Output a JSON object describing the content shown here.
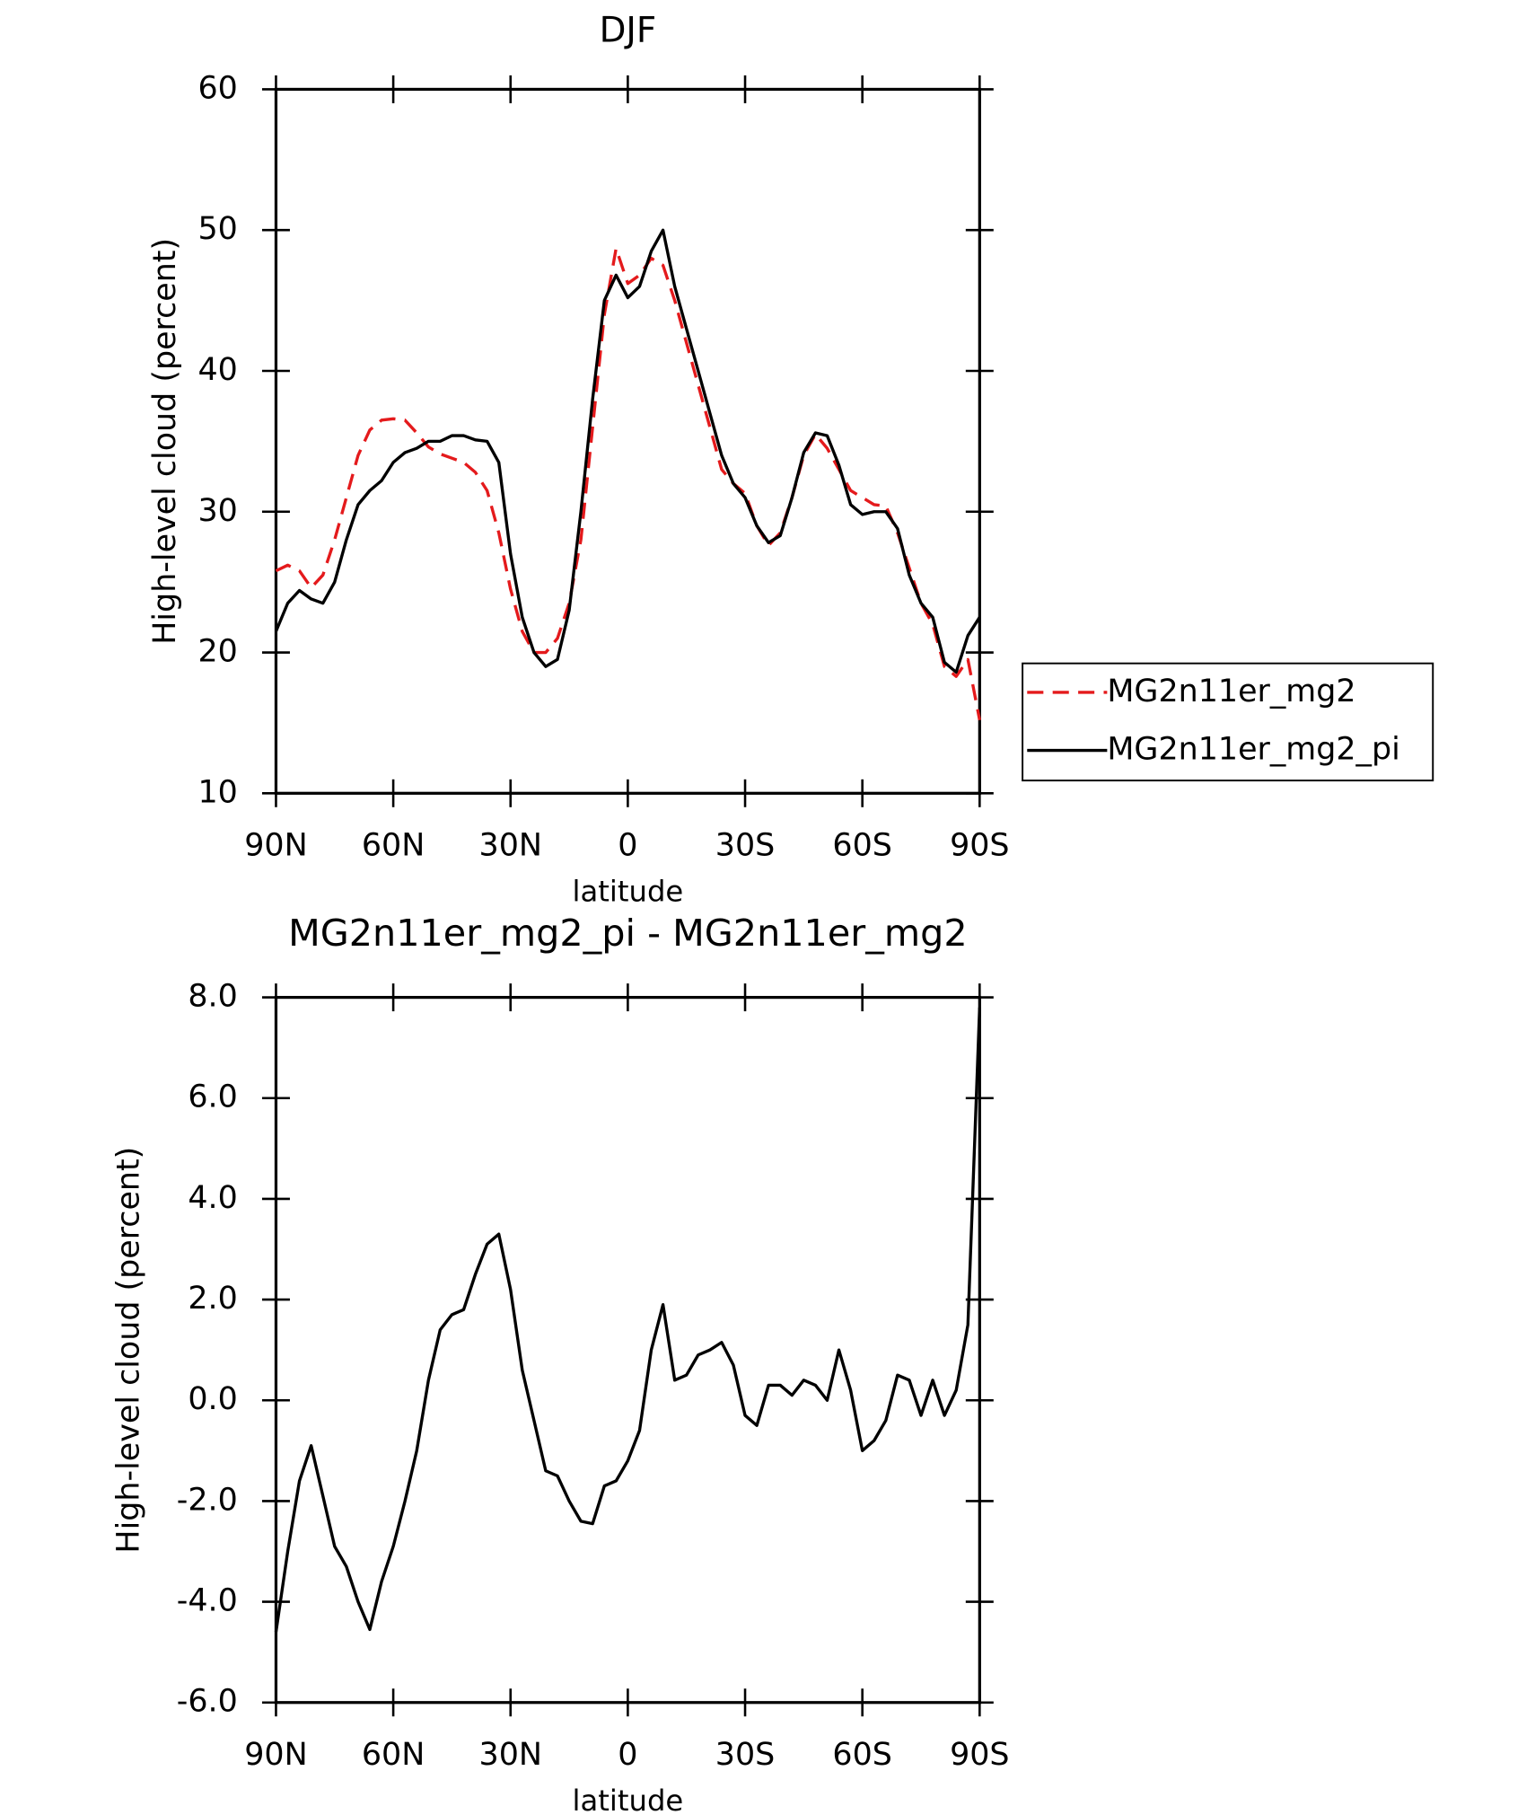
{
  "chart_data": [
    {
      "type": "line",
      "title": "DJF",
      "x_label": "latitude",
      "y_label": "High-level cloud (percent)",
      "x": [
        90,
        87,
        84,
        81,
        78,
        75,
        72,
        69,
        66,
        63,
        60,
        57,
        54,
        51,
        48,
        45,
        42,
        39,
        36,
        33,
        30,
        27,
        24,
        21,
        18,
        15,
        12,
        9,
        6,
        3,
        0,
        -3,
        -6,
        -9,
        -12,
        -15,
        -18,
        -21,
        -24,
        -27,
        -30,
        -33,
        -36,
        -39,
        -42,
        -45,
        -48,
        -51,
        -54,
        -57,
        -60,
        -63,
        -66,
        -69,
        -72,
        -75,
        -78,
        -81,
        -84,
        -87,
        -90
      ],
      "series": [
        {
          "name": "MG2n11er_mg2",
          "color": "#e41a1c",
          "dashed": true,
          "values": [
            25.8,
            26.2,
            25.8,
            24.6,
            25.5,
            28,
            31,
            34,
            35.8,
            36.5,
            36.6,
            36.5,
            35.6,
            34.6,
            34.1,
            33.8,
            33.5,
            32.8,
            31.5,
            28.5,
            24.5,
            21.5,
            20,
            20,
            21,
            23.5,
            28,
            36,
            44,
            48.7,
            46.2,
            46.8,
            48,
            47.5,
            45,
            42,
            39,
            36,
            33,
            32,
            31.3,
            29,
            27.6,
            28.5,
            31,
            34,
            35.5,
            34.5,
            33,
            31.5,
            31,
            30.5,
            30.4,
            28.5,
            26,
            23.5,
            22,
            19,
            18.3,
            19.5,
            15.2
          ]
        },
        {
          "name": "MG2n11er_mg2_pi",
          "color": "#000000",
          "dashed": false,
          "values": [
            21.5,
            23.5,
            24.4,
            23.8,
            23.5,
            25,
            28,
            30.5,
            31.5,
            32.2,
            33.5,
            34.2,
            34.5,
            35,
            35,
            35.4,
            35.4,
            35.1,
            35,
            33.5,
            27,
            22.5,
            20,
            19,
            19.5,
            23,
            30,
            38,
            45,
            46.8,
            45.2,
            46,
            48.5,
            50,
            46,
            43,
            40,
            37,
            34,
            32,
            31,
            29,
            27.8,
            28.3,
            31,
            34.2,
            35.6,
            35.4,
            33.3,
            30.5,
            29.8,
            30,
            30,
            28.8,
            25.5,
            23.5,
            22.5,
            19.3,
            18.6,
            21.2,
            22.5
          ]
        }
      ],
      "xlim": [
        90,
        -90
      ],
      "xticks": [
        {
          "value": 90,
          "label": "90N"
        },
        {
          "value": 60,
          "label": "60N"
        },
        {
          "value": 30,
          "label": "30N"
        },
        0,
        {
          "value": -30,
          "label": "30S"
        },
        {
          "value": -60,
          "label": "60S"
        },
        {
          "value": -90,
          "label": "90S"
        }
      ],
      "ylim": [
        10,
        60
      ],
      "yticks": [
        10,
        20,
        30,
        40,
        50,
        60
      ],
      "legend": "right"
    },
    {
      "type": "line",
      "title": "MG2n11er_mg2_pi - MG2n11er_mg2",
      "x_label": "latitude",
      "y_label": "High-level cloud (percent)",
      "x": [
        90,
        87,
        84,
        81,
        78,
        75,
        72,
        69,
        66,
        63,
        60,
        57,
        54,
        51,
        48,
        45,
        42,
        39,
        36,
        33,
        30,
        27,
        24,
        21,
        18,
        15,
        12,
        9,
        6,
        3,
        0,
        -3,
        -6,
        -9,
        -12,
        -15,
        -18,
        -21,
        -24,
        -27,
        -30,
        -33,
        -36,
        -39,
        -42,
        -45,
        -48,
        -51,
        -54,
        -57,
        -60,
        -63,
        -66,
        -69,
        -72,
        -75,
        -78,
        -81,
        -84,
        -87,
        -90
      ],
      "values": [
        -4.6,
        -3.0,
        -1.6,
        -0.9,
        -1.9,
        -2.9,
        -3.3,
        -4.0,
        -4.55,
        -3.6,
        -2.9,
        -2.0,
        -1.0,
        0.4,
        1.4,
        1.7,
        1.8,
        2.5,
        3.1,
        3.3,
        2.2,
        0.6,
        -0.4,
        -1.4,
        -1.5,
        -2.0,
        -2.4,
        -2.45,
        -1.7,
        -1.6,
        -1.2,
        -0.6,
        1.0,
        1.9,
        0.4,
        0.5,
        0.9,
        1.0,
        1.15,
        0.7,
        -0.3,
        -0.5,
        0.3,
        0.3,
        0.1,
        0.4,
        0.3,
        0.0,
        1.0,
        0.2,
        -1.0,
        -0.8,
        -0.4,
        0.5,
        0.4,
        -0.3,
        0.4,
        -0.3,
        0.2,
        1.5,
        7.8
      ],
      "color": "#000000",
      "xlim": [
        90,
        -90
      ],
      "xticks": [
        {
          "value": 90,
          "label": "90N"
        },
        {
          "value": 60,
          "label": "60N"
        },
        {
          "value": 30,
          "label": "30N"
        },
        0,
        {
          "value": -30,
          "label": "30S"
        },
        {
          "value": -60,
          "label": "60S"
        },
        {
          "value": -90,
          "label": "90S"
        }
      ],
      "ylim": [
        -6,
        8
      ],
      "yticks": [
        {
          "value": -6,
          "label": "-6.0"
        },
        {
          "value": -4,
          "label": "-4.0"
        },
        {
          "value": -2,
          "label": "-2.0"
        },
        {
          "value": 0,
          "label": "0.0"
        },
        {
          "value": 2,
          "label": "2.0"
        },
        {
          "value": 4,
          "label": "4.0"
        },
        {
          "value": 6,
          "label": "6.0"
        },
        {
          "value": 8,
          "label": "8.0"
        }
      ]
    }
  ]
}
